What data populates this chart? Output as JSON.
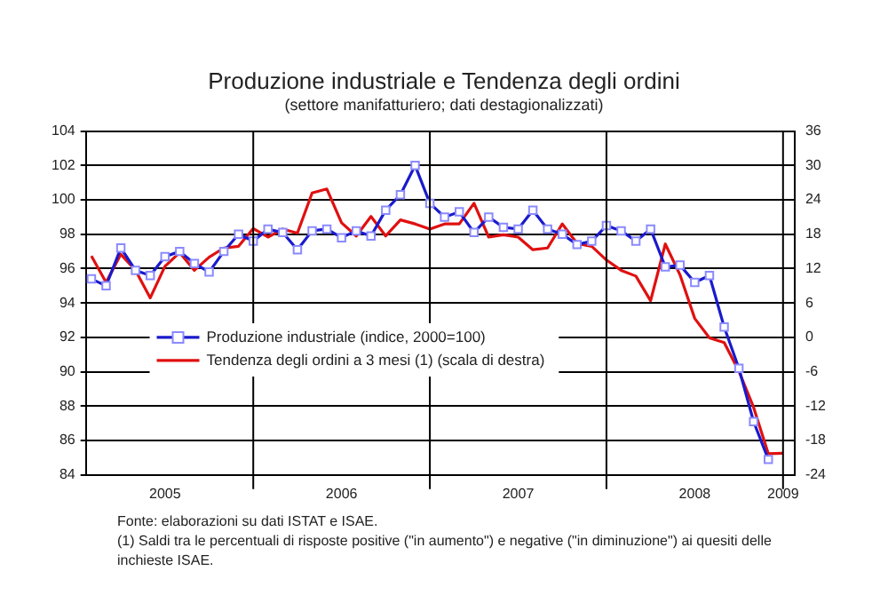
{
  "chart_data": {
    "type": "line",
    "title": "Produzione industriale e Tendenza degli ordini",
    "subtitle": "(settore manifatturiero; dati destagionalizzati)",
    "annotations": [
      "Fonte: elaborazioni su dati ISTAT e ISAE.",
      "(1) Saldi tra le percentuali di risposte positive (\"in aumento\") e negative (\"in diminuzione\") ai quesiti delle inchieste ISAE."
    ],
    "x": [
      "2005-02",
      "2005-03",
      "2005-04",
      "2005-05",
      "2005-06",
      "2005-07",
      "2005-08",
      "2005-09",
      "2005-10",
      "2005-11",
      "2005-12",
      "2006-01",
      "2006-02",
      "2006-03",
      "2006-04",
      "2006-05",
      "2006-06",
      "2006-07",
      "2006-08",
      "2006-09",
      "2006-10",
      "2006-11",
      "2006-12",
      "2007-01",
      "2007-02",
      "2007-03",
      "2007-04",
      "2007-05",
      "2007-06",
      "2007-07",
      "2007-08",
      "2007-09",
      "2007-10",
      "2007-11",
      "2007-12",
      "2008-01",
      "2008-02",
      "2008-03",
      "2008-04",
      "2008-05",
      "2008-06",
      "2008-07",
      "2008-08",
      "2008-09",
      "2008-10",
      "2008-11",
      "2008-12",
      "2009-01"
    ],
    "series": [
      {
        "name": "Produzione industriale (indice, 2000=100)",
        "color": "#1a1acc",
        "marker": "square",
        "axis": "y",
        "values": [
          95.4,
          95.0,
          97.2,
          95.9,
          95.6,
          96.7,
          97.0,
          96.3,
          95.8,
          97.0,
          98.0,
          97.6,
          98.3,
          98.1,
          97.1,
          98.2,
          98.3,
          97.8,
          98.2,
          97.9,
          99.4,
          100.3,
          102.0,
          99.8,
          99.0,
          99.3,
          98.1,
          99.0,
          98.4,
          98.3,
          99.4,
          98.3,
          98.0,
          97.4,
          97.6,
          98.5,
          98.2,
          97.6,
          98.3,
          96.1,
          96.2,
          95.2,
          95.6,
          92.6,
          90.2,
          87.1,
          84.9,
          null
        ]
      },
      {
        "name": "Tendenza degli ordini a 3 mesi (1) (scala di destra)",
        "color": "#e01010",
        "marker": "none",
        "axis": "y2",
        "values": [
          14.2,
          9.6,
          14.5,
          11.7,
          6.9,
          12.4,
          14.8,
          11.7,
          14.0,
          15.6,
          15.9,
          19.0,
          17.5,
          18.9,
          18.2,
          25.2,
          25.9,
          20.0,
          17.7,
          21.1,
          17.7,
          20.5,
          19.8,
          18.9,
          19.8,
          19.8,
          23.4,
          17.5,
          17.9,
          17.5,
          15.3,
          15.6,
          19.8,
          16.4,
          15.9,
          13.5,
          11.7,
          10.7,
          6.4,
          16.3,
          10.9,
          3.3,
          -0.1,
          -0.9,
          -5.9,
          -12.2,
          -20.3,
          -20.2
        ]
      }
    ],
    "xlim": [
      "2005-01-20",
      "2009-01-25"
    ],
    "xticks": [
      {
        "value": "2005-07",
        "label": "2005"
      },
      {
        "value": "2006-07",
        "label": "2006"
      },
      {
        "value": "2007-07",
        "label": "2007"
      },
      {
        "value": "2008-07",
        "label": "2008"
      },
      {
        "value": "2009-01",
        "label": "2009"
      }
    ],
    "ylim": [
      84,
      104
    ],
    "yticks": [
      84,
      86,
      88,
      90,
      92,
      94,
      96,
      98,
      100,
      102,
      104
    ],
    "y2lim": [
      -24,
      36
    ],
    "y2ticks": [
      -24,
      -18,
      -12,
      -6,
      0,
      6,
      12,
      18,
      24,
      30,
      36
    ],
    "ref_lines": [
      {
        "axis": "x",
        "value": "2006-01",
        "color": "#000000"
      },
      {
        "axis": "x",
        "value": "2007-01",
        "color": "#000000"
      },
      {
        "axis": "x",
        "value": "2008-01",
        "color": "#000000"
      },
      {
        "axis": "x",
        "value": "2009-01",
        "color": "#000000"
      }
    ],
    "grid": "y",
    "legend": "left",
    "line_style": "solid"
  }
}
